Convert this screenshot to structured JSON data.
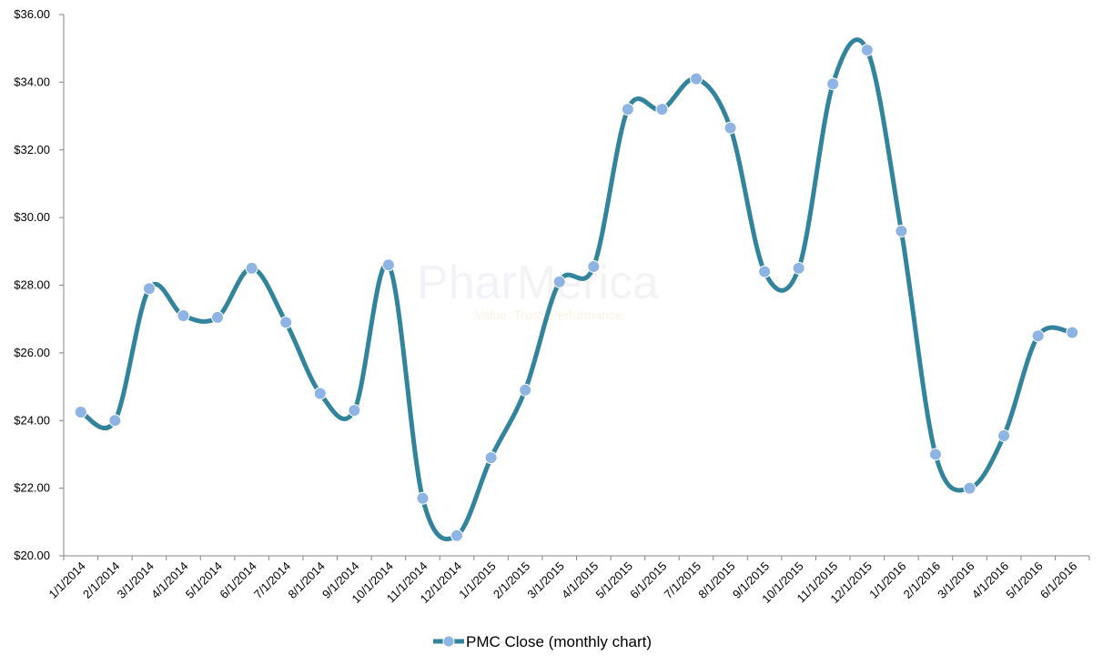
{
  "chart_data": {
    "type": "line",
    "smooth": true,
    "title": "",
    "xlabel": "",
    "ylabel": "",
    "ylim": [
      20,
      36
    ],
    "y_ticks": [
      "$20.00",
      "$22.00",
      "$24.00",
      "$26.00",
      "$28.00",
      "$30.00",
      "$32.00",
      "$34.00",
      "$36.00"
    ],
    "grid": false,
    "legend_position": "bottom",
    "categories": [
      "1/1/2014",
      "2/1/2014",
      "3/1/2014",
      "4/1/2014",
      "5/1/2014",
      "6/1/2014",
      "7/1/2014",
      "8/1/2014",
      "9/1/2014",
      "10/1/2014",
      "11/1/2014",
      "12/1/2014",
      "1/1/2015",
      "2/1/2015",
      "3/1/2015",
      "4/1/2015",
      "5/1/2015",
      "6/1/2015",
      "7/1/2015",
      "8/1/2015",
      "9/1/2015",
      "10/1/2015",
      "11/1/2015",
      "12/1/2015",
      "1/1/2016",
      "2/1/2016",
      "3/1/2016",
      "4/1/2016",
      "5/1/2016",
      "6/1/2016"
    ],
    "series": [
      {
        "name": "PMC Close  (monthly chart)",
        "line_color": "#31849b",
        "marker_color": "#8eb4e3",
        "values": [
          24.25,
          24.0,
          27.9,
          27.1,
          27.05,
          28.5,
          26.9,
          24.8,
          24.3,
          28.6,
          21.7,
          20.6,
          22.9,
          24.9,
          28.1,
          28.55,
          33.2,
          33.2,
          34.1,
          32.65,
          28.4,
          28.5,
          33.95,
          34.95,
          29.6,
          23.0,
          22.0,
          23.55,
          26.5,
          26.6
        ]
      }
    ]
  },
  "watermark": {
    "brand_part1": "Phar",
    "brand_part2": "Merica",
    "tagline": "Value. Trust. Performance."
  }
}
